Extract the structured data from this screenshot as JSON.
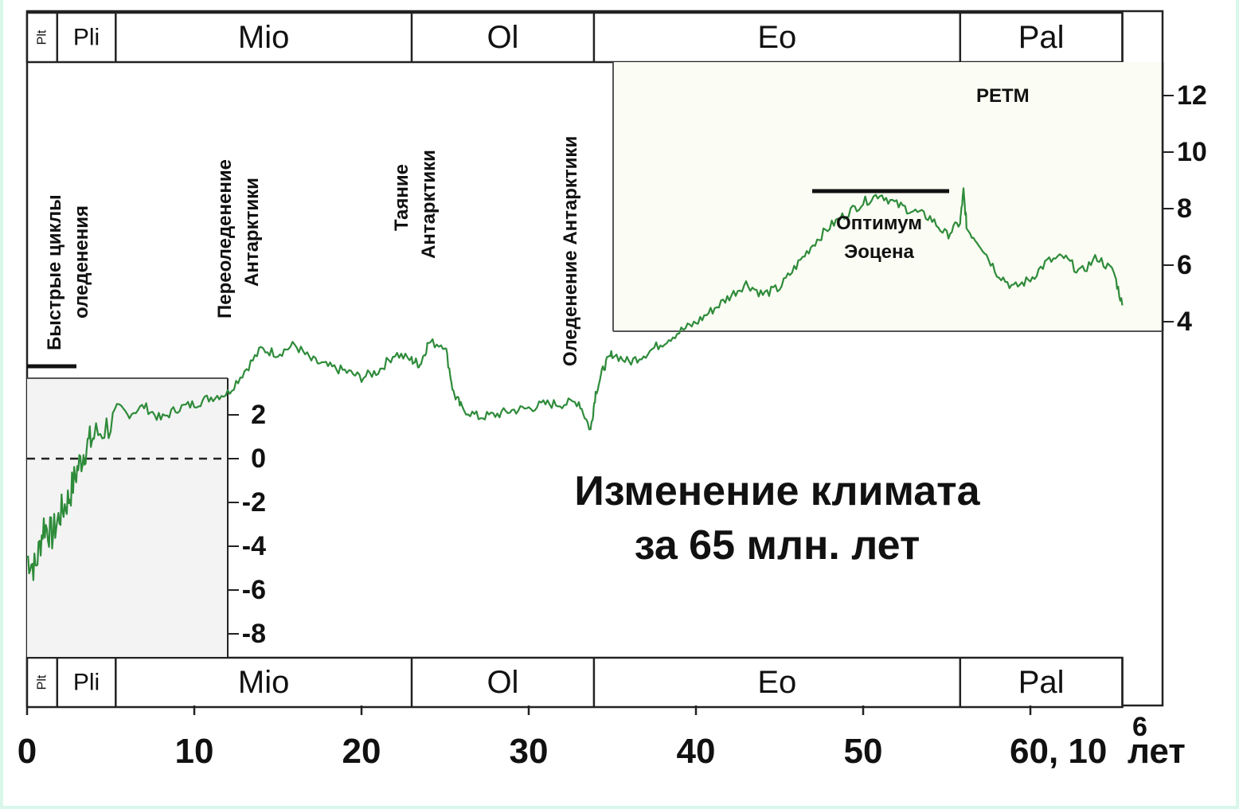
{
  "chart_data": {
    "type": "line",
    "title_lines": [
      "Изменение климата",
      "за 65 млн. лет"
    ],
    "x_axis": {
      "range": [
        0,
        68
      ],
      "ticks": [
        0,
        10,
        20,
        30,
        40,
        50
      ],
      "last_tick_label": "60, 10",
      "last_tick_value": 60,
      "unit_superscript": "6",
      "unit_suffix": "лет"
    },
    "y_axis_left": {
      "ticks": [
        2,
        0,
        -2,
        -4,
        -6,
        -8
      ]
    },
    "y_axis_right": {
      "ticks": [
        12,
        10,
        8,
        6,
        4
      ]
    },
    "epochs": [
      {
        "label": "Plt",
        "start": 0,
        "end": 1.8
      },
      {
        "label": "Pli",
        "start": 1.8,
        "end": 5.3
      },
      {
        "label": "Mio",
        "start": 5.3,
        "end": 23
      },
      {
        "label": "Ol",
        "start": 23,
        "end": 33.9
      },
      {
        "label": "Eo",
        "start": 33.9,
        "end": 55.8
      },
      {
        "label": "Pal",
        "start": 55.8,
        "end": 65.5
      }
    ],
    "series": [
      {
        "color": "#2e8b3a",
        "points": [
          [
            0,
            -4.5
          ],
          [
            0.5,
            -5.0
          ],
          [
            1,
            -3.0
          ],
          [
            1.5,
            -3.5
          ],
          [
            2,
            -2.5
          ],
          [
            2.5,
            -1.8
          ],
          [
            3,
            -0.5
          ],
          [
            3.5,
            0.5
          ],
          [
            4,
            1.0
          ],
          [
            5,
            1.6
          ],
          [
            6,
            2.0
          ],
          [
            7,
            2.4
          ],
          [
            8,
            1.8
          ],
          [
            9,
            2.3
          ],
          [
            10,
            2.5
          ],
          [
            11,
            2.8
          ],
          [
            12,
            3.0
          ],
          [
            13,
            4.0
          ],
          [
            14,
            5.0
          ],
          [
            15,
            4.8
          ],
          [
            16,
            5.2
          ],
          [
            17,
            4.5
          ],
          [
            18,
            4.2
          ],
          [
            19,
            4.0
          ],
          [
            20,
            3.7
          ],
          [
            21,
            4.0
          ],
          [
            22,
            4.8
          ],
          [
            23,
            4.5
          ],
          [
            23.5,
            4.3
          ],
          [
            24,
            5.3
          ],
          [
            25,
            5.2
          ],
          [
            25.5,
            3.0
          ],
          [
            26,
            2.3
          ],
          [
            27,
            1.9
          ],
          [
            28,
            2.0
          ],
          [
            29,
            2.2
          ],
          [
            30,
            2.3
          ],
          [
            31,
            2.5
          ],
          [
            32,
            2.5
          ],
          [
            33,
            2.6
          ],
          [
            33.7,
            1.3
          ],
          [
            34,
            3.0
          ],
          [
            34.5,
            4.2
          ],
          [
            35,
            4.8
          ],
          [
            36,
            4.4
          ],
          [
            37,
            4.8
          ],
          [
            38,
            5.3
          ],
          [
            39,
            5.8
          ],
          [
            40,
            6.2
          ],
          [
            41,
            6.8
          ],
          [
            42,
            7.4
          ],
          [
            43,
            8.0
          ],
          [
            44,
            7.5
          ],
          [
            45,
            7.8
          ],
          [
            46,
            8.8
          ],
          [
            47,
            9.8
          ],
          [
            48,
            10.6
          ],
          [
            49,
            11.2
          ],
          [
            50,
            11.7
          ],
          [
            51,
            12.1
          ],
          [
            52,
            11.6
          ],
          [
            53,
            11.3
          ],
          [
            54,
            11.0
          ],
          [
            55,
            10.2
          ],
          [
            55.8,
            10.8
          ],
          [
            56,
            12.2
          ],
          [
            56.2,
            10.5
          ],
          [
            57,
            9.8
          ],
          [
            58,
            8.5
          ],
          [
            59,
            7.8
          ],
          [
            60,
            8.2
          ],
          [
            61,
            9.0
          ],
          [
            62,
            9.2
          ],
          [
            63,
            8.5
          ],
          [
            64,
            9.2
          ],
          [
            65,
            8.5
          ],
          [
            65.5,
            7.0
          ]
        ]
      }
    ],
    "annotations": {
      "rapid_cycles": [
        "Быстрые циклы",
        "оледенения"
      ],
      "reglaciation": [
        "Переоледенение",
        "Антарктики"
      ],
      "melting": [
        "Таяние",
        "Антарктики"
      ],
      "glaciation": "Оледенение Антарктики",
      "petm": "PETM",
      "eocene_optimum": [
        "Оптимум",
        "Эоцена"
      ]
    }
  }
}
